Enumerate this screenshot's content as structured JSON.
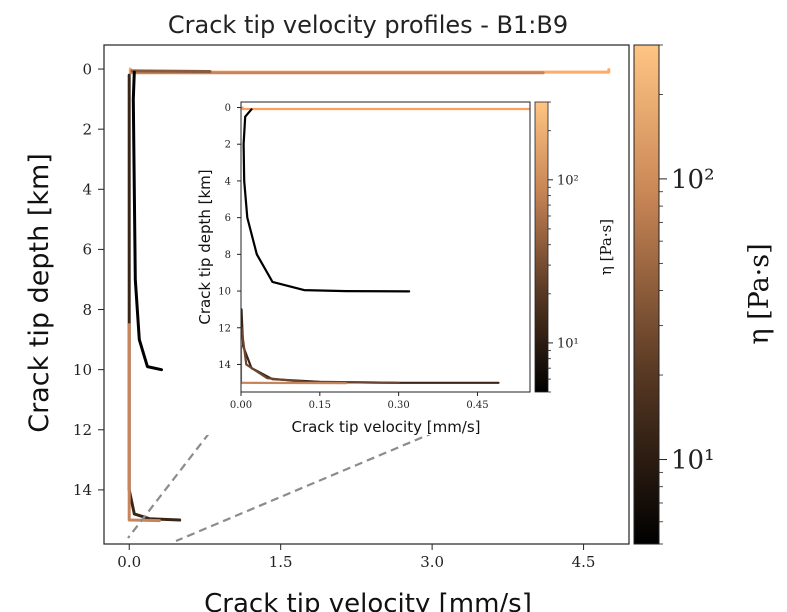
{
  "chart_data": [
    {
      "id": "main",
      "type": "line",
      "title": "Crack tip velocity profiles - B1:B9",
      "xlabel": "Crack tip velocity [mm/s]",
      "ylabel": "Crack tip depth [km]",
      "xlim": [
        -0.25,
        4.95
      ],
      "ylim": [
        15.8,
        -0.8
      ],
      "xticks": [
        0.0,
        1.5,
        3.0,
        4.5
      ],
      "xtick_labels": [
        "0.0",
        "1.5",
        "3.0",
        "4.5"
      ],
      "yticks": [
        0,
        2,
        4,
        6,
        8,
        10,
        12,
        14
      ],
      "ytick_labels": [
        "0",
        "2",
        "4",
        "6",
        "8",
        "10",
        "12",
        "14"
      ],
      "grid": false,
      "series": [
        {
          "color": "#ffaa66",
          "points": [
            [
              0.01,
              0.0
            ],
            [
              0.01,
              0.1
            ],
            [
              4.75,
              0.1
            ],
            [
              4.75,
              0.02
            ]
          ]
        },
        {
          "color": "#c8845a",
          "points": [
            [
              0.02,
              0.05
            ],
            [
              0.02,
              0.12
            ],
            [
              4.1,
              0.12
            ]
          ]
        },
        {
          "color": "#8a5a3c",
          "points": [
            [
              0.03,
              0.06
            ],
            [
              0.8,
              0.08
            ]
          ]
        },
        {
          "color": "#000000",
          "points": [
            [
              0.05,
              0.1
            ],
            [
              0.04,
              1
            ],
            [
              0.05,
              4
            ],
            [
              0.06,
              7
            ],
            [
              0.1,
              9
            ],
            [
              0.18,
              9.9
            ],
            [
              0.32,
              10.0
            ]
          ]
        },
        {
          "color": "#3a2618",
          "points": [
            [
              0.0,
              0.2
            ],
            [
              0.0,
              14.0
            ],
            [
              0.05,
              14.8
            ],
            [
              0.2,
              14.96
            ],
            [
              0.5,
              15.0
            ]
          ]
        },
        {
          "color": "#c8845a",
          "points": [
            [
              0.0,
              8.5
            ],
            [
              0.0,
              15.0
            ],
            [
              0.3,
              15.02
            ]
          ]
        }
      ]
    },
    {
      "id": "inset",
      "type": "line",
      "title": "",
      "xlabel": "Crack tip velocity [mm/s]",
      "ylabel": "Crack tip depth [km]",
      "xlim": [
        0.0,
        0.55
      ],
      "ylim": [
        15.5,
        -0.3
      ],
      "xticks": [
        0.0,
        0.15,
        0.3,
        0.45
      ],
      "xtick_labels": [
        "0.00",
        "0.15",
        "0.30",
        "0.45"
      ],
      "yticks": [
        0,
        2,
        4,
        6,
        8,
        10,
        12,
        14
      ],
      "ytick_labels": [
        "0",
        "2",
        "4",
        "6",
        "8",
        "10",
        "12",
        "14"
      ],
      "grid": false,
      "series": [
        {
          "color": "#ff9f5c",
          "points": [
            [
              0.003,
              0.0
            ],
            [
              0.003,
              0.08
            ],
            [
              0.55,
              0.08
            ]
          ]
        },
        {
          "color": "#000000",
          "points": [
            [
              0.02,
              0.1
            ],
            [
              0.008,
              0.5
            ],
            [
              0.005,
              2
            ],
            [
              0.006,
              4
            ],
            [
              0.012,
              6
            ],
            [
              0.03,
              8
            ],
            [
              0.06,
              9.5
            ],
            [
              0.12,
              9.95
            ],
            [
              0.2,
              10.0
            ],
            [
              0.32,
              10.02
            ]
          ]
        },
        {
          "color": "#3a2618",
          "points": [
            [
              0.001,
              11
            ],
            [
              0.004,
              13
            ],
            [
              0.02,
              14.2
            ],
            [
              0.06,
              14.8
            ],
            [
              0.15,
              14.95
            ],
            [
              0.3,
              15.0
            ],
            [
              0.49,
              15.0
            ]
          ]
        },
        {
          "color": "#6b4530",
          "points": [
            [
              0.001,
              12
            ],
            [
              0.01,
              14
            ],
            [
              0.05,
              14.75
            ],
            [
              0.12,
              14.95
            ],
            [
              0.3,
              15.0
            ]
          ]
        },
        {
          "color": "#c8845a",
          "points": [
            [
              0.0,
              13
            ],
            [
              0.0,
              15.0
            ],
            [
              0.2,
              15.02
            ]
          ]
        }
      ]
    }
  ],
  "colorbar_main": {
    "label": "η [Pa·s]",
    "scale": "log",
    "range": [
      5,
      300
    ],
    "ticks": [
      10,
      100
    ],
    "tick_labels": [
      "10¹",
      "10²"
    ]
  },
  "colorbar_inset": {
    "label": "η [Pa·s]",
    "scale": "log",
    "range": [
      5,
      300
    ],
    "ticks": [
      10,
      100
    ],
    "tick_labels": [
      "10¹",
      "10²"
    ]
  },
  "colors": {
    "cmap_dark": "#000000",
    "cmap_mid": "#a86b45",
    "cmap_light": "#ffc27a",
    "zoom_line": "#8c8c8c"
  }
}
